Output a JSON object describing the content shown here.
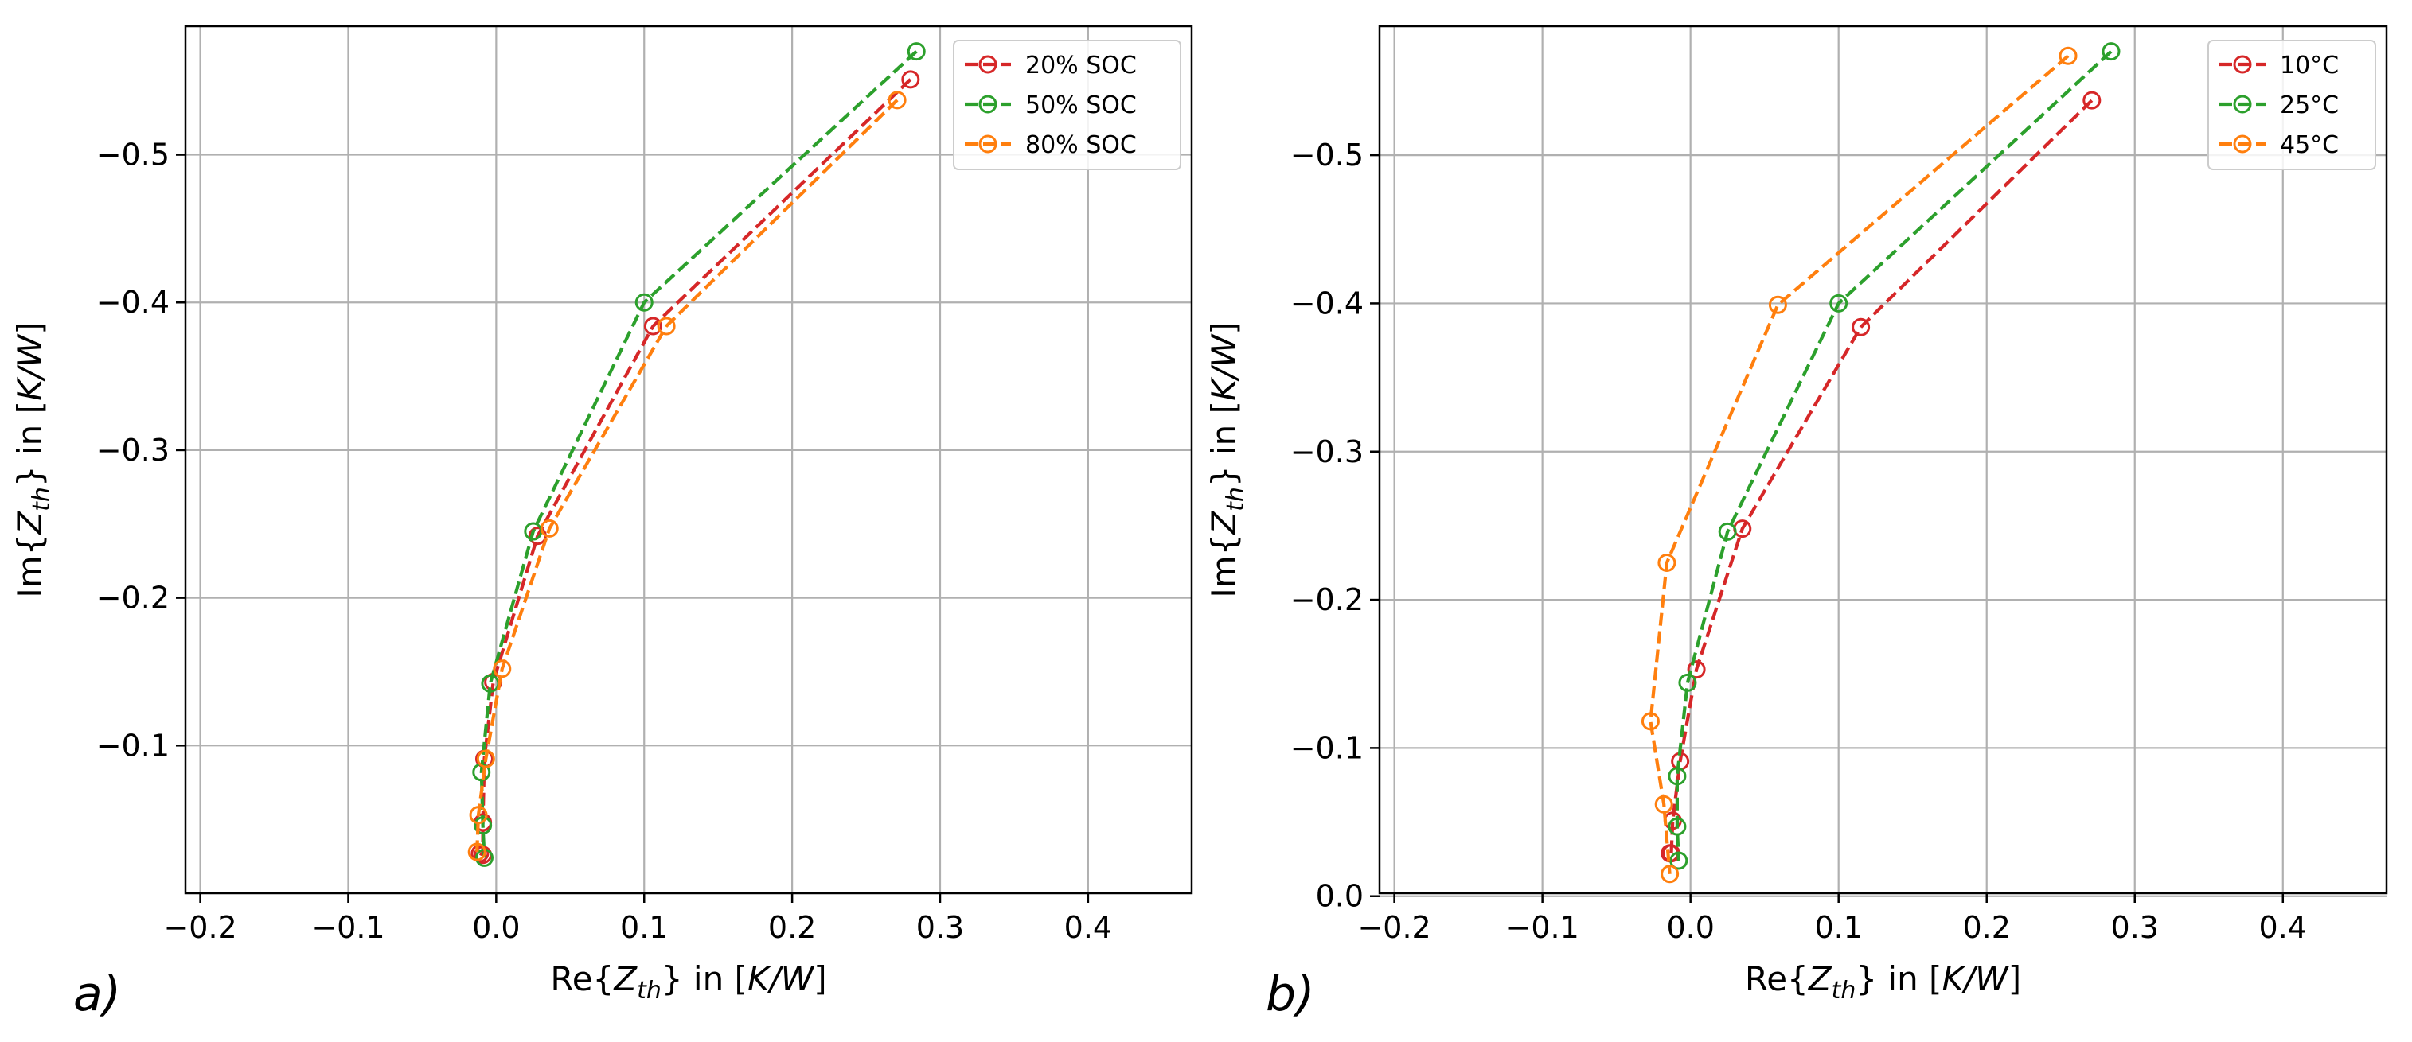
{
  "chart_data": [
    {
      "type": "line",
      "panel_label": "a)",
      "xlabel_parts": [
        "Re{",
        "Z",
        "th",
        "} in [",
        "K/W",
        "]"
      ],
      "ylabel_parts": [
        "Im{",
        "Z",
        "th",
        "} in [",
        "K/W",
        "]"
      ],
      "xlim": [
        -0.21,
        0.47
      ],
      "ylim": [
        0.0,
        -0.587
      ],
      "xticks": [
        -0.2,
        -0.1,
        0.0,
        0.1,
        0.2,
        0.3,
        0.4
      ],
      "xtick_labels": [
        "−0.2",
        "−0.1",
        "0.0",
        "0.1",
        "0.2",
        "0.3",
        "0.4"
      ],
      "yticks": [
        -0.1,
        -0.2,
        -0.3,
        -0.4,
        -0.5
      ],
      "ytick_labels": [
        "−0.1",
        "−0.2",
        "−0.3",
        "−0.4",
        "−0.5"
      ],
      "grid": true,
      "legend_position": "top-right",
      "series": [
        {
          "name": "20% SOC",
          "color": "#d62728",
          "x": [
            0.28,
            0.106,
            0.028,
            -0.002,
            -0.008,
            -0.009,
            -0.009,
            -0.011
          ],
          "y": [
            -0.551,
            -0.384,
            -0.242,
            -0.143,
            -0.091,
            -0.048,
            -0.026,
            -0.027
          ]
        },
        {
          "name": "50% SOC",
          "color": "#2ca02c",
          "x": [
            0.284,
            0.1,
            0.025,
            -0.004,
            -0.01,
            -0.009,
            -0.008
          ],
          "y": [
            -0.57,
            -0.4,
            -0.245,
            -0.142,
            -0.082,
            -0.046,
            -0.024
          ]
        },
        {
          "name": "80% SOC",
          "color": "#ff7f0e",
          "x": [
            0.271,
            0.115,
            0.036,
            0.004,
            -0.007,
            -0.012,
            -0.013
          ],
          "y": [
            -0.537,
            -0.384,
            -0.247,
            -0.152,
            -0.091,
            -0.053,
            -0.028
          ]
        }
      ]
    },
    {
      "type": "line",
      "panel_label": "b)",
      "xlabel_parts": [
        "Re{",
        "Z",
        "th",
        "} in [",
        "K/W",
        "]"
      ],
      "ylabel_parts": [
        "Im{",
        "Z",
        "th",
        "} in [",
        "K/W",
        "]"
      ],
      "xlim": [
        -0.21,
        0.47
      ],
      "ylim": [
        -0.002,
        -0.587
      ],
      "xticks": [
        -0.2,
        -0.1,
        0.0,
        0.1,
        0.2,
        0.3,
        0.4
      ],
      "xtick_labels": [
        "−0.2",
        "−0.1",
        "0.0",
        "0.1",
        "0.2",
        "0.3",
        "0.4"
      ],
      "yticks": [
        0.0,
        -0.1,
        -0.2,
        -0.3,
        -0.4,
        -0.5
      ],
      "ytick_labels": [
        "0.0",
        "−0.1",
        "−0.2",
        "−0.3",
        "−0.4",
        "−0.5"
      ],
      "grid": true,
      "legend_position": "top-right",
      "series": [
        {
          "name": "10°C",
          "color": "#d62728",
          "x": [
            0.271,
            0.115,
            0.035,
            0.004,
            -0.007,
            -0.012,
            -0.013,
            -0.014
          ],
          "y": [
            -0.537,
            -0.384,
            -0.248,
            -0.153,
            -0.091,
            -0.051,
            -0.029,
            -0.029
          ]
        },
        {
          "name": "25°C",
          "color": "#2ca02c",
          "x": [
            0.284,
            0.1,
            0.025,
            -0.002,
            -0.009,
            -0.009,
            -0.008
          ],
          "y": [
            -0.57,
            -0.4,
            -0.246,
            -0.144,
            -0.081,
            -0.047,
            -0.024
          ]
        },
        {
          "name": "45°C",
          "color": "#ff7f0e",
          "x": [
            0.255,
            0.059,
            -0.016,
            -0.027,
            -0.018,
            -0.014
          ],
          "y": [
            -0.567,
            -0.399,
            -0.225,
            -0.118,
            -0.062,
            -0.015
          ]
        }
      ]
    }
  ]
}
